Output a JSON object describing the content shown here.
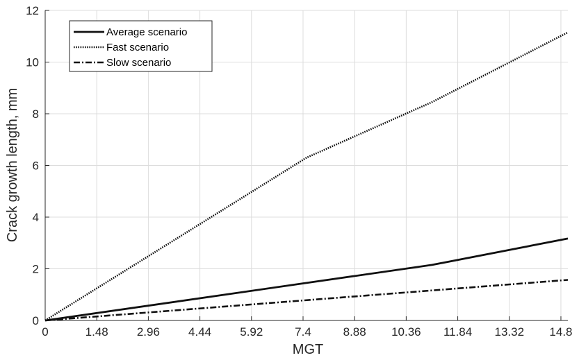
{
  "chart_data": {
    "type": "line",
    "xlabel": "MGT",
    "ylabel": "Crack growth length, mm",
    "xlim": [
      0,
      15.0
    ],
    "ylim": [
      0,
      12
    ],
    "xticks": [
      0,
      1.48,
      2.96,
      4.44,
      5.92,
      7.4,
      8.88,
      10.36,
      11.84,
      13.32,
      14.8
    ],
    "xtick_labels": [
      "0",
      "1.48",
      "2.96",
      "4.44",
      "5.92",
      "7.4",
      "8.88",
      "10.36",
      "11.84",
      "13.32",
      "14.8"
    ],
    "yticks": [
      0,
      2,
      4,
      6,
      8,
      10,
      12
    ],
    "ytick_labels": [
      "0",
      "2",
      "4",
      "6",
      "8",
      "10",
      "12"
    ],
    "grid": true,
    "legend_position": "top-left",
    "series": [
      {
        "name": "Average scenario",
        "style": "solid",
        "x": [
          0,
          11.1,
          15.0
        ],
        "y": [
          0,
          2.15,
          3.17
        ]
      },
      {
        "name": "Fast scenario",
        "style": "dotted",
        "x": [
          0,
          7.5,
          11.1,
          15.0
        ],
        "y": [
          0,
          6.3,
          8.45,
          11.15
        ]
      },
      {
        "name": "Slow scenario",
        "style": "dashdot",
        "x": [
          0,
          15.0
        ],
        "y": [
          0,
          1.57
        ]
      }
    ]
  }
}
